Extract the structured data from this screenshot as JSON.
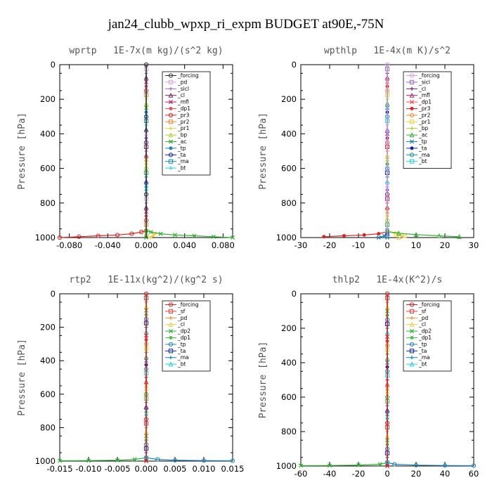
{
  "title": "jan24_clubb_wpxp_ri_expm  BUDGET at90E,-75N",
  "chart_data": [
    {
      "type": "line",
      "title": "wprtp   1E-7x(m kg)/(s^2 kg)",
      "ylabel": "Pressure [hPa]",
      "xlim": [
        -0.09,
        0.09
      ],
      "ylim": [
        1000,
        0
      ],
      "xticks": [
        "-0.080",
        "-0.040",
        "0.000",
        "0.040",
        "0.080"
      ],
      "xtick_values": [
        -0.08,
        -0.04,
        0.0,
        0.04,
        0.08
      ],
      "yticks": [
        "0",
        "200",
        "400",
        "600",
        "800",
        "1000"
      ],
      "ytick_values": [
        0,
        200,
        400,
        600,
        800,
        1000
      ],
      "legend_position": "top-right",
      "series": [
        {
          "name": "_forcing",
          "color": "#333333",
          "x": [
            0,
            0,
            0,
            0,
            0
          ],
          "y": [
            0,
            250,
            500,
            750,
            1000
          ]
        },
        {
          "name": "_pd",
          "color": "#d9a0d9",
          "x": [
            0,
            0
          ],
          "y": [
            0,
            1000
          ]
        },
        {
          "name": "_sicl",
          "color": "#9a6bd0",
          "x": [
            0,
            0
          ],
          "y": [
            0,
            1000
          ]
        },
        {
          "name": "_cl",
          "color": "#7a1f5a",
          "x": [
            0,
            0
          ],
          "y": [
            0,
            1000
          ]
        },
        {
          "name": "_mfl",
          "color": "#b0206a",
          "x": [
            0,
            0
          ],
          "y": [
            0,
            1000
          ]
        },
        {
          "name": "_dp1",
          "color": "#e8505a",
          "x": [
            0,
            0
          ],
          "y": [
            0,
            1000
          ]
        },
        {
          "name": "_pr3",
          "color": "#e02020",
          "x": [
            -0.09,
            -0.07,
            -0.05,
            -0.03,
            -0.015,
            -0.005,
            0,
            0
          ],
          "y": [
            1000,
            995,
            990,
            985,
            978,
            968,
            960,
            0
          ]
        },
        {
          "name": "_pr2",
          "color": "#f08a30",
          "x": [
            0,
            0
          ],
          "y": [
            0,
            1000
          ]
        },
        {
          "name": "_pr1",
          "color": "#e8d040",
          "x": [
            0.004,
            0.006,
            0.008,
            0.01,
            0
          ],
          "y": [
            1000,
            995,
            985,
            975,
            960
          ]
        },
        {
          "name": "_bp",
          "color": "#b0d020",
          "x": [
            0,
            0
          ],
          "y": [
            0,
            1000
          ]
        },
        {
          "name": "_ac",
          "color": "#30b030",
          "x": [
            0.09,
            0.07,
            0.05,
            0.03,
            0.015,
            0.005,
            0
          ],
          "y": [
            1000,
            995,
            990,
            985,
            978,
            968,
            960
          ]
        },
        {
          "name": "_tp",
          "color": "#2080c0",
          "x": [
            0,
            0
          ],
          "y": [
            0,
            1000
          ]
        },
        {
          "name": "_ta",
          "color": "#1020b0",
          "x": [
            0,
            0
          ],
          "y": [
            0,
            1000
          ]
        },
        {
          "name": "_ma",
          "color": "#1090a0",
          "x": [
            0,
            0
          ],
          "y": [
            0,
            1000
          ]
        },
        {
          "name": "_bt",
          "color": "#20d0e0",
          "x": [
            0,
            0
          ],
          "y": [
            0,
            1000
          ]
        }
      ]
    },
    {
      "type": "line",
      "title": "wpthlp   1E-4x(m K)/s^2",
      "ylabel": "Pressure [hPa]",
      "xlim": [
        -30,
        30
      ],
      "ylim": [
        1000,
        0
      ],
      "xticks": [
        "-30",
        "-20",
        "-10",
        "0",
        "10",
        "20",
        "30"
      ],
      "xtick_values": [
        -30,
        -20,
        -10,
        0,
        10,
        20,
        30
      ],
      "yticks": [
        "0",
        "200",
        "400",
        "600",
        "800",
        "1000"
      ],
      "ytick_values": [
        0,
        200,
        400,
        600,
        800,
        1000
      ],
      "legend_position": "top-right",
      "series": [
        {
          "name": "_forcing",
          "color": "#d9a0d9",
          "x": [
            0,
            0
          ],
          "y": [
            0,
            1000
          ]
        },
        {
          "name": "_sicl",
          "color": "#9a6bd0",
          "x": [
            0,
            0,
            0,
            0,
            0
          ],
          "y": [
            0,
            250,
            500,
            750,
            1000
          ]
        },
        {
          "name": "_cl",
          "color": "#7a1f5a",
          "x": [
            0,
            0
          ],
          "y": [
            0,
            1000
          ]
        },
        {
          "name": "_mfl",
          "color": "#b0206a",
          "x": [
            0,
            0
          ],
          "y": [
            0,
            1000
          ]
        },
        {
          "name": "_dp1",
          "color": "#e8505a",
          "x": [
            0,
            0
          ],
          "y": [
            0,
            1000
          ]
        },
        {
          "name": "_pr3",
          "color": "#e02020",
          "x": [
            -22,
            -15,
            -8,
            -3,
            0
          ],
          "y": [
            995,
            990,
            985,
            978,
            965
          ]
        },
        {
          "name": "_pr2",
          "color": "#f08a30",
          "x": [
            0,
            0
          ],
          "y": [
            0,
            1000
          ]
        },
        {
          "name": "_pr1",
          "color": "#e8d040",
          "x": [
            4,
            6,
            3,
            0
          ],
          "y": [
            1000,
            990,
            978,
            965
          ]
        },
        {
          "name": "_bp",
          "color": "#b0d020",
          "x": [
            0,
            0
          ],
          "y": [
            0,
            1000
          ]
        },
        {
          "name": "_ac",
          "color": "#30b030",
          "x": [
            25,
            18,
            10,
            4,
            0
          ],
          "y": [
            995,
            990,
            983,
            975,
            965
          ]
        },
        {
          "name": "_tp",
          "color": "#2080c0",
          "x": [
            -3,
            -1,
            0
          ],
          "y": [
            1000,
            990,
            965
          ]
        },
        {
          "name": "_ta",
          "color": "#1020b0",
          "x": [
            0,
            0
          ],
          "y": [
            0,
            1000
          ]
        },
        {
          "name": "_ma",
          "color": "#1090a0",
          "x": [
            0,
            0
          ],
          "y": [
            0,
            1000
          ]
        },
        {
          "name": "_bt",
          "color": "#20d0e0",
          "x": [
            0,
            0
          ],
          "y": [
            0,
            1000
          ]
        }
      ]
    },
    {
      "type": "line",
      "title": "rtp2   1E-11x(kg^2)/(kg^2 s)",
      "ylabel": "Pressure [hPa]",
      "xlim": [
        -0.015,
        0.015
      ],
      "ylim": [
        1000,
        0
      ],
      "xticks": [
        "-0.015",
        "-0.010",
        "-0.005",
        "0.000",
        "0.005",
        "0.010",
        "0.015"
      ],
      "xtick_values": [
        -0.015,
        -0.01,
        -0.005,
        0.0,
        0.005,
        0.01,
        0.015
      ],
      "yticks": [
        "0",
        "200",
        "400",
        "600",
        "800",
        "1000"
      ],
      "ytick_values": [
        0,
        200,
        400,
        600,
        800,
        1000
      ],
      "legend_position": "top-right",
      "series": [
        {
          "name": "_forcing",
          "color": "#e02020",
          "x": [
            0,
            0
          ],
          "y": [
            0,
            1000
          ]
        },
        {
          "name": "_sf",
          "color": "#e04040",
          "x": [
            0,
            0,
            0,
            0,
            0
          ],
          "y": [
            0,
            250,
            500,
            750,
            1000
          ]
        },
        {
          "name": "_pd",
          "color": "#f09030",
          "x": [
            0,
            0
          ],
          "y": [
            0,
            1000
          ]
        },
        {
          "name": "_cl",
          "color": "#e8d040",
          "x": [
            0,
            0
          ],
          "y": [
            0,
            1000
          ]
        },
        {
          "name": "_dp2",
          "color": "#30b030",
          "x": [
            -0.015,
            -0.01,
            -0.005,
            -0.002,
            0
          ],
          "y": [
            998,
            997,
            995,
            990,
            980
          ]
        },
        {
          "name": "_dp1",
          "color": "#50c050",
          "x": [
            0,
            0
          ],
          "y": [
            0,
            1000
          ]
        },
        {
          "name": "_tp",
          "color": "#2080c0",
          "x": [
            0.015,
            0.01,
            0.005,
            0.002,
            0
          ],
          "y": [
            998,
            997,
            995,
            990,
            980
          ]
        },
        {
          "name": "_ta",
          "color": "#1020b0",
          "x": [
            0,
            0
          ],
          "y": [
            0,
            1000
          ]
        },
        {
          "name": "_ma",
          "color": "#1090a0",
          "x": [
            0,
            0
          ],
          "y": [
            0,
            1000
          ]
        },
        {
          "name": "_bt",
          "color": "#20d0e0",
          "x": [
            0,
            0
          ],
          "y": [
            0,
            1000
          ]
        }
      ]
    },
    {
      "type": "line",
      "title": "thlp2   1E-4x(K^2)/s",
      "ylabel": "Pressure [hPa]",
      "xlim": [
        -60,
        60
      ],
      "ylim": [
        1000,
        0
      ],
      "xticks": [
        "-60",
        "-40",
        "-20",
        "0",
        "20",
        "40",
        "60"
      ],
      "xtick_values": [
        -60,
        -40,
        -20,
        0,
        20,
        40,
        60
      ],
      "yticks": [
        "0",
        "200",
        "400",
        "600",
        "800",
        "1000"
      ],
      "ytick_values": [
        0,
        200,
        400,
        600,
        800,
        1000
      ],
      "legend_position": "top-right",
      "series": [
        {
          "name": "_forcing",
          "color": "#e02020",
          "x": [
            0,
            0
          ],
          "y": [
            0,
            1000
          ]
        },
        {
          "name": "_sf",
          "color": "#e04040",
          "x": [
            0,
            0,
            0,
            0,
            0
          ],
          "y": [
            0,
            250,
            500,
            750,
            1000
          ]
        },
        {
          "name": "_pd",
          "color": "#f09030",
          "x": [
            0,
            0
          ],
          "y": [
            0,
            1000
          ]
        },
        {
          "name": "_cl",
          "color": "#e8d040",
          "x": [
            0,
            0
          ],
          "y": [
            0,
            1000
          ]
        },
        {
          "name": "_dp2",
          "color": "#30b030",
          "x": [
            -60,
            -40,
            -20,
            -5,
            0
          ],
          "y": [
            998,
            997,
            995,
            990,
            980
          ]
        },
        {
          "name": "_dp1",
          "color": "#50c050",
          "x": [
            0,
            0
          ],
          "y": [
            0,
            1000
          ]
        },
        {
          "name": "_tp",
          "color": "#2080c0",
          "x": [
            60,
            40,
            20,
            5,
            0
          ],
          "y": [
            998,
            997,
            995,
            990,
            980
          ]
        },
        {
          "name": "_ta",
          "color": "#1020b0",
          "x": [
            0,
            0
          ],
          "y": [
            0,
            1000
          ]
        },
        {
          "name": "_ma",
          "color": "#1090a0",
          "x": [
            0,
            0
          ],
          "y": [
            0,
            1000
          ]
        },
        {
          "name": "_bt",
          "color": "#20d0e0",
          "x": [
            0,
            0
          ],
          "y": [
            0,
            1000
          ]
        }
      ]
    }
  ]
}
